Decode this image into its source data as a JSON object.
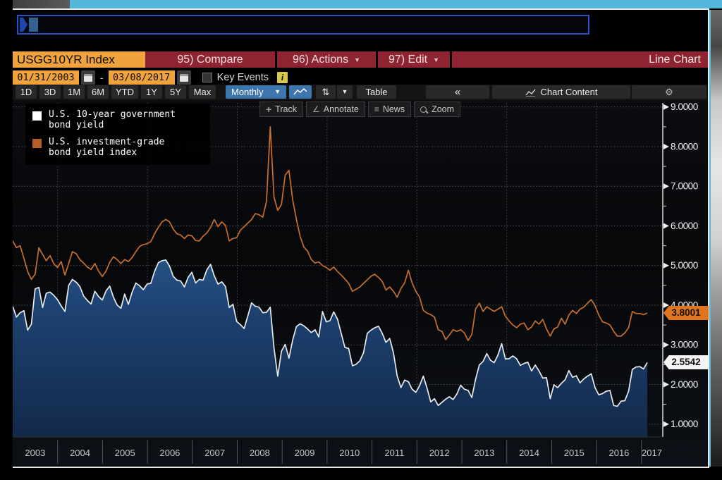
{
  "window": {
    "command": {
      "value": "",
      "prompt": ""
    }
  },
  "header": {
    "ticker": "USGG10YR Index",
    "items": [
      {
        "id": "compare",
        "label": "95) Compare",
        "dropdown": false
      },
      {
        "id": "actions",
        "label": "96) Actions",
        "dropdown": true
      },
      {
        "id": "edit",
        "label": "97) Edit",
        "dropdown": true
      }
    ],
    "right_label": "Line Chart",
    "accent_color": "#f0a23c",
    "bar_color": "#8e2432"
  },
  "daterange": {
    "start": "01/31/2003",
    "separator": "-",
    "end": "03/08/2017",
    "key_events_label": "Key Events",
    "key_events_checked": false,
    "info_badge": "i"
  },
  "toolbar": {
    "ranges": [
      "1D",
      "3D",
      "1M",
      "6M",
      "YTD",
      "1Y",
      "5Y",
      "Max"
    ],
    "frequency": "Monthly",
    "frequency_caret": "▼",
    "sort_icon_glyph": "⇅",
    "caret_glyph": "▼",
    "table_label": "Table",
    "collapse_label": "«",
    "chart_content_label": "Chart Content",
    "gear_glyph": "⚙"
  },
  "chart_tools": [
    {
      "icon": "track-icon",
      "glyph": "+",
      "label": "Track"
    },
    {
      "icon": "annotate-icon",
      "glyph": "∠",
      "label": "Annotate"
    },
    {
      "icon": "news-icon",
      "glyph": "≡",
      "label": "News"
    },
    {
      "icon": "zoom-icon",
      "glyph": "",
      "label": "Zoom"
    }
  ],
  "legend": [
    {
      "swatch": "#ffffff",
      "line1": "U.S. 10-year government",
      "line2": "bond yield"
    },
    {
      "swatch": "#b65e26",
      "line1": "U.S. investment-grade",
      "line2": "bond yield index"
    }
  ],
  "chart_data": {
    "type": "line",
    "frequency": "Monthly",
    "x_years": [
      2003,
      2004,
      2005,
      2006,
      2007,
      2008,
      2009,
      2010,
      2011,
      2012,
      2013,
      2014,
      2015,
      2016,
      2017
    ],
    "x_range": [
      "2003-01",
      "2017-03"
    ],
    "ylim": [
      1.0,
      9.0
    ],
    "grid": "dotted",
    "legend_position": "top-left",
    "y_ticks": [
      {
        "v": 9,
        "label": "9.0000"
      },
      {
        "v": 8,
        "label": "8.0000"
      },
      {
        "v": 7,
        "label": "7.0000"
      },
      {
        "v": 6,
        "label": "6.0000"
      },
      {
        "v": 5,
        "label": "5.0000"
      },
      {
        "v": 4,
        "label": "4.0000"
      },
      {
        "v": 3,
        "label": "3.0000"
      },
      {
        "v": 2,
        "label": "2.0000"
      },
      {
        "v": 1,
        "label": "1.0000"
      }
    ],
    "last_values": {
      "us_10yr": "2.5542",
      "ig_index": "3.8001"
    },
    "series": [
      {
        "name": "U.S. 10-year government bond yield",
        "color": "#e6ebef",
        "fill": true,
        "values": [
          3.97,
          3.7,
          3.81,
          3.86,
          3.37,
          3.52,
          4.41,
          4.45,
          3.94,
          4.3,
          4.33,
          4.25,
          4.14,
          3.98,
          3.84,
          4.5,
          4.65,
          4.58,
          4.47,
          4.23,
          4.12,
          4.03,
          4.35,
          4.22,
          4.13,
          4.36,
          4.48,
          4.2,
          4.0,
          3.92,
          4.28,
          4.02,
          4.33,
          4.56,
          4.49,
          4.39,
          4.53,
          4.55,
          4.85,
          5.07,
          5.12,
          5.14,
          4.99,
          4.73,
          4.63,
          4.61,
          4.46,
          4.7,
          4.83,
          4.56,
          4.65,
          4.63,
          4.89,
          5.03,
          4.74,
          4.53,
          4.59,
          4.47,
          3.94,
          4.02,
          3.59,
          3.51,
          3.41,
          3.73,
          4.06,
          3.97,
          3.95,
          3.81,
          3.82,
          3.95,
          2.92,
          2.21,
          2.84,
          3.01,
          2.66,
          3.12,
          3.46,
          3.53,
          3.48,
          3.4,
          3.31,
          3.38,
          3.2,
          3.84,
          3.58,
          3.61,
          3.83,
          3.65,
          3.29,
          2.93,
          2.91,
          2.47,
          2.51,
          2.6,
          2.8,
          3.29,
          3.37,
          3.43,
          3.47,
          3.29,
          3.06,
          3.16,
          2.8,
          2.22,
          1.92,
          2.11,
          2.07,
          1.88,
          1.8,
          1.97,
          2.21,
          1.91,
          1.56,
          1.64,
          1.47,
          1.55,
          1.63,
          1.69,
          1.62,
          1.76,
          1.98,
          1.88,
          1.85,
          1.67,
          2.13,
          2.49,
          2.58,
          2.78,
          2.61,
          2.55,
          2.74,
          3.03,
          2.64,
          2.65,
          2.72,
          2.65,
          2.48,
          2.53,
          2.56,
          2.34,
          2.49,
          2.34,
          2.16,
          2.17,
          1.64,
          1.99,
          1.92,
          2.03,
          2.12,
          2.35,
          2.18,
          2.22,
          2.04,
          2.14,
          2.21,
          2.27,
          1.92,
          1.74,
          1.77,
          1.83,
          1.85,
          1.47,
          1.45,
          1.58,
          1.59,
          1.83,
          2.38,
          2.44,
          2.45,
          2.39,
          2.5542
        ]
      },
      {
        "name": "U.S. investment-grade bond yield index",
        "color": "#c96f2d",
        "fill": false,
        "values": [
          5.62,
          5.45,
          5.5,
          5.18,
          4.85,
          4.65,
          4.78,
          5.45,
          5.28,
          5.12,
          5.25,
          5.05,
          4.95,
          5.1,
          4.76,
          5.05,
          5.35,
          5.3,
          5.15,
          5.06,
          4.96,
          4.9,
          5.05,
          4.86,
          4.72,
          4.86,
          5.08,
          5.22,
          5.15,
          5.05,
          5.15,
          5.1,
          5.2,
          5.35,
          5.48,
          5.53,
          5.55,
          5.6,
          5.8,
          5.96,
          6.1,
          6.16,
          6.1,
          5.92,
          5.8,
          5.77,
          5.68,
          5.77,
          5.75,
          5.63,
          5.62,
          5.74,
          5.82,
          5.96,
          6.16,
          5.98,
          6.1,
          6.01,
          5.62,
          5.68,
          5.7,
          5.89,
          5.98,
          6.07,
          6.16,
          6.31,
          6.28,
          6.22,
          6.62,
          8.5,
          6.72,
          6.39,
          6.54,
          7.28,
          7.4,
          6.66,
          6.16,
          5.74,
          5.47,
          5.36,
          5.15,
          5.06,
          5.09,
          5.0,
          4.95,
          4.88,
          4.96,
          4.85,
          4.76,
          4.66,
          4.55,
          4.35,
          4.4,
          4.46,
          4.55,
          4.64,
          4.73,
          4.78,
          4.7,
          4.6,
          4.38,
          4.46,
          4.35,
          4.2,
          4.42,
          4.56,
          4.88,
          4.56,
          4.35,
          4.2,
          3.87,
          3.8,
          3.76,
          3.7,
          3.38,
          3.34,
          3.13,
          3.25,
          3.38,
          3.34,
          3.38,
          3.3,
          3.11,
          3.26,
          3.9,
          4.05,
          3.84,
          3.96,
          3.9,
          3.84,
          3.9,
          3.96,
          3.72,
          3.6,
          3.5,
          3.43,
          3.52,
          3.55,
          3.38,
          3.45,
          3.6,
          3.52,
          3.64,
          3.4,
          3.22,
          3.4,
          3.45,
          3.67,
          3.52,
          3.75,
          3.87,
          3.79,
          3.9,
          3.95,
          4.05,
          4.14,
          3.99,
          3.75,
          3.58,
          3.55,
          3.5,
          3.34,
          3.22,
          3.22,
          3.3,
          3.43,
          3.84,
          3.79,
          3.79,
          3.76,
          3.8001
        ]
      }
    ]
  }
}
